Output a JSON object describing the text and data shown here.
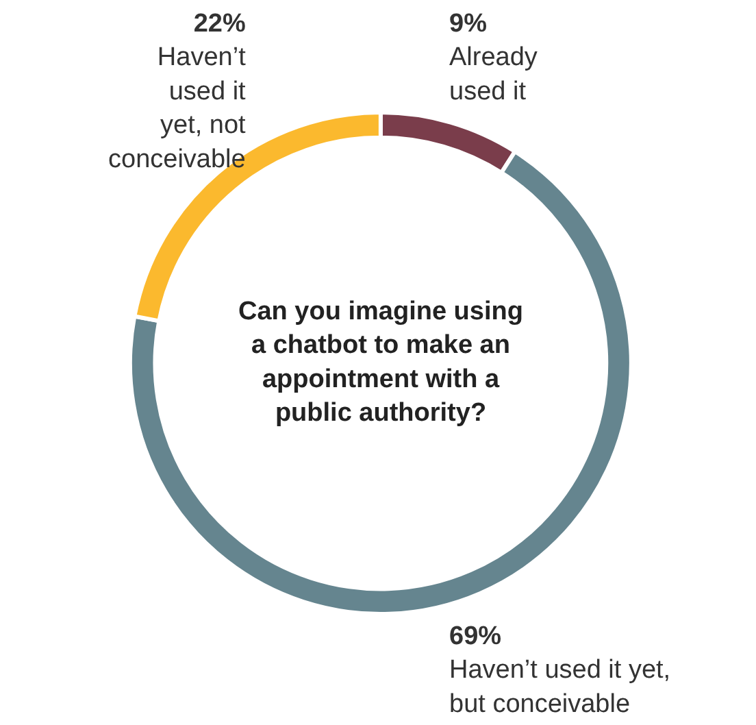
{
  "chart_data": {
    "type": "donut",
    "title": "Can you imagine using a chatbot to make an appointment with a public authority?",
    "categories": [
      "Already used it",
      "Haven’t used it yet, but conceivable",
      "Haven’t used it yet, not conceivable"
    ],
    "values": [
      9,
      69,
      22
    ],
    "value_labels": [
      "9%",
      "69%",
      "22%"
    ],
    "colors": [
      "#7a3d4b",
      "#65858f",
      "#fbb92e"
    ],
    "legend": false
  }
}
